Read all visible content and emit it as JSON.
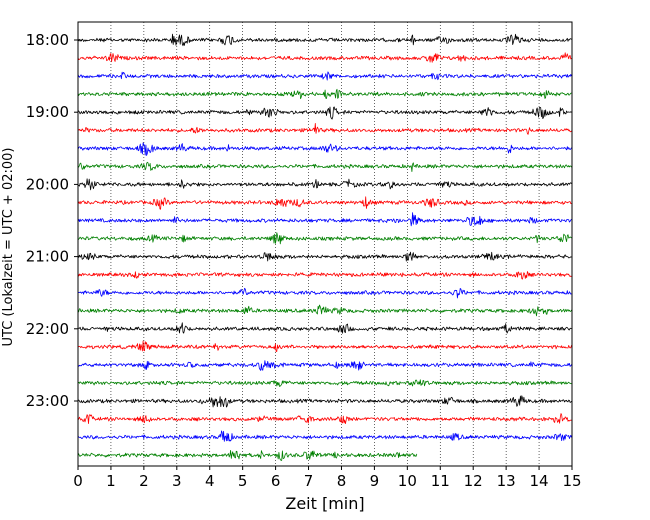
{
  "chart_data": {
    "type": "line",
    "subtype": "helicorder",
    "title": "",
    "xlabel": "Zeit  [min]",
    "ylabel": "UTC (Lokalzeit = UTC + 02:00)",
    "xlim": [
      0,
      15
    ],
    "x_ticks": [
      "0",
      "1",
      "2",
      "3",
      "4",
      "5",
      "6",
      "7",
      "8",
      "9",
      "10",
      "11",
      "12",
      "13",
      "14",
      "15"
    ],
    "y_tick_labels": [
      "18:00",
      "19:00",
      "20:00",
      "21:00",
      "22:00",
      "23:00"
    ],
    "grid": "vertical dotted at each minute",
    "legend": "none",
    "trace_colors": [
      "#000000",
      "#ff0000",
      "#0000ff",
      "#008000"
    ],
    "series": [
      {
        "start": "18:00",
        "end_min": 15
      },
      {
        "start": "18:15",
        "end_min": 15
      },
      {
        "start": "18:30",
        "end_min": 15
      },
      {
        "start": "18:45",
        "end_min": 15
      },
      {
        "start": "19:00",
        "end_min": 15
      },
      {
        "start": "19:15",
        "end_min": 15
      },
      {
        "start": "19:30",
        "end_min": 15
      },
      {
        "start": "19:45",
        "end_min": 15
      },
      {
        "start": "20:00",
        "end_min": 15
      },
      {
        "start": "20:15",
        "end_min": 15
      },
      {
        "start": "20:30",
        "end_min": 15
      },
      {
        "start": "20:45",
        "end_min": 15
      },
      {
        "start": "21:00",
        "end_min": 15
      },
      {
        "start": "21:15",
        "end_min": 15
      },
      {
        "start": "21:30",
        "end_min": 15
      },
      {
        "start": "21:45",
        "end_min": 15
      },
      {
        "start": "22:00",
        "end_min": 15
      },
      {
        "start": "22:15",
        "end_min": 15
      },
      {
        "start": "22:30",
        "end_min": 15
      },
      {
        "start": "22:45",
        "end_min": 15
      },
      {
        "start": "23:00",
        "end_min": 15
      },
      {
        "start": "23:15",
        "end_min": 15
      },
      {
        "start": "23:30",
        "end_min": 15
      },
      {
        "start": "23:45",
        "end_min": 10.3
      }
    ]
  }
}
